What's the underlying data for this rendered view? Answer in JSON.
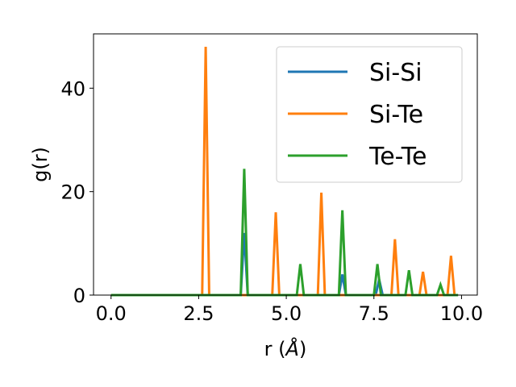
{
  "chart_data": {
    "type": "line",
    "title": "",
    "xlabel_base": "r (",
    "xlabel_unit": "Å",
    "xlabel_close": ")",
    "ylabel": "g(r)",
    "xlim": [
      -0.5,
      10.45
    ],
    "ylim": [
      0,
      50.5
    ],
    "xticks": [
      0.0,
      2.5,
      5.0,
      7.5,
      10.0
    ],
    "xtick_labels": [
      "0.0",
      "2.5",
      "5.0",
      "7.5",
      "10.0"
    ],
    "yticks": [
      0,
      20,
      40
    ],
    "ytick_labels": [
      "0",
      "20",
      "40"
    ],
    "grid": false,
    "legend_position": "top-right",
    "series": [
      {
        "name": "Si-Si",
        "color": "#1f77b4",
        "x": [
          0.0,
          3.7,
          3.8,
          3.9,
          6.5,
          6.6,
          6.7,
          7.55,
          7.65,
          7.75,
          9.9
        ],
        "y": [
          0,
          0,
          12.0,
          0,
          0,
          4.0,
          0,
          0,
          3.0,
          0,
          0
        ]
      },
      {
        "name": "Si-Te",
        "color": "#ff7f0e",
        "x": [
          0.0,
          2.6,
          2.7,
          2.8,
          4.6,
          4.7,
          4.8,
          5.9,
          6.0,
          6.1,
          8.0,
          8.1,
          8.2,
          8.8,
          8.9,
          9.0,
          9.6,
          9.7,
          9.8,
          9.9
        ],
        "y": [
          0,
          0,
          48.0,
          0,
          0,
          16.0,
          0,
          0,
          19.8,
          0,
          0,
          10.8,
          0,
          0,
          4.5,
          0,
          0,
          7.6,
          0,
          0
        ]
      },
      {
        "name": "Te-Te",
        "color": "#2ca02c",
        "x": [
          0.0,
          3.7,
          3.8,
          3.9,
          5.3,
          5.4,
          5.5,
          6.5,
          6.6,
          6.7,
          7.5,
          7.6,
          7.7,
          8.4,
          8.5,
          8.6,
          9.3,
          9.4,
          9.5,
          9.9
        ],
        "y": [
          0,
          0,
          24.4,
          0,
          0,
          6.0,
          0,
          0,
          16.4,
          0,
          0,
          6.0,
          0,
          0,
          4.8,
          0,
          0,
          2.0,
          0,
          0
        ]
      }
    ]
  }
}
